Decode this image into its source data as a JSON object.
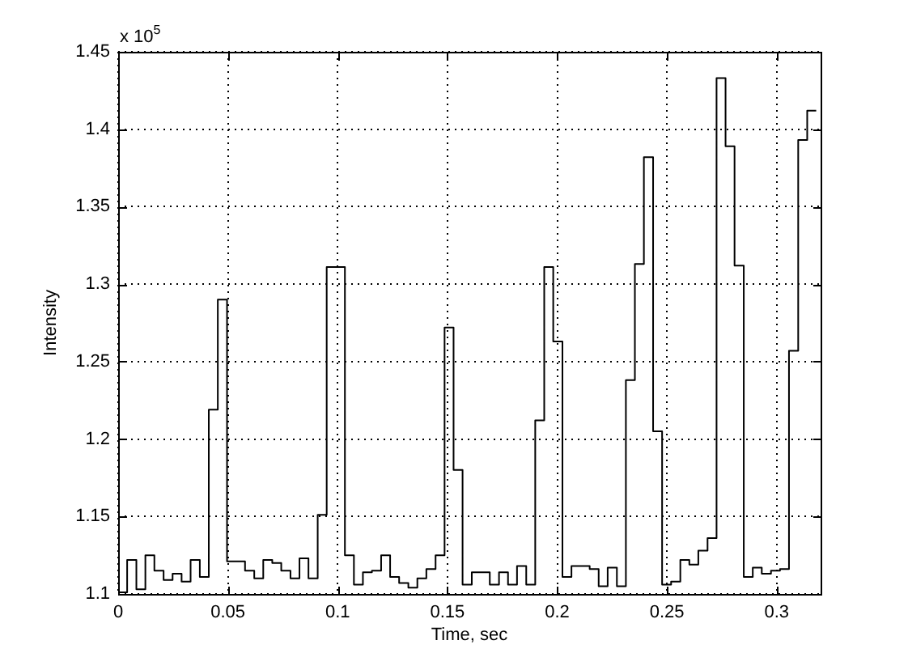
{
  "chart_data": {
    "type": "step",
    "xlabel": "Time, sec",
    "ylabel": "Intensity",
    "annotations": [
      "x 10$^{5}$"
    ],
    "x": [
      0,
      0.0041,
      0.0083,
      0.0124,
      0.0165,
      0.0207,
      0.0248,
      0.0289,
      0.033,
      0.0372,
      0.0413,
      0.0454,
      0.0496,
      0.0537,
      0.0578,
      0.062,
      0.0661,
      0.0702,
      0.0743,
      0.0785,
      0.0826,
      0.0867,
      0.0909,
      0.095,
      0.0991,
      0.1033,
      0.1074,
      0.1115,
      0.1156,
      0.1198,
      0.1239,
      0.128,
      0.1322,
      0.1363,
      0.1404,
      0.1446,
      0.1487,
      0.1528,
      0.1569,
      0.1611,
      0.1652,
      0.1693,
      0.1735,
      0.1776,
      0.1817,
      0.1859,
      0.19,
      0.1941,
      0.1982,
      0.2024,
      0.2065,
      0.2106,
      0.2148,
      0.2189,
      0.223,
      0.2272,
      0.2313,
      0.2354,
      0.2395,
      0.2437,
      0.2478,
      0.2519,
      0.2561,
      0.2602,
      0.2643,
      0.2685,
      0.2726,
      0.2767,
      0.2808,
      0.285,
      0.2891,
      0.2932,
      0.2974,
      0.3015,
      0.3056,
      0.3098,
      0.3139,
      0.318
    ],
    "series": [
      {
        "color": "#000000",
        "values": [
          1.113,
          1.101,
          1.122,
          1.103,
          1.125,
          1.115,
          1.109,
          1.113,
          1.108,
          1.122,
          1.111,
          1.219,
          1.29,
          1.121,
          1.121,
          1.115,
          1.11,
          1.122,
          1.12,
          1.115,
          1.11,
          1.123,
          1.11,
          1.151,
          1.311,
          1.311,
          1.125,
          1.106,
          1.114,
          1.115,
          1.125,
          1.111,
          1.107,
          1.104,
          1.11,
          1.116,
          1.125,
          1.272,
          1.18,
          1.106,
          1.114,
          1.114,
          1.106,
          1.114,
          1.106,
          1.118,
          1.106,
          1.212,
          1.311,
          1.263,
          1.111,
          1.118,
          1.118,
          1.116,
          1.105,
          1.117,
          1.105,
          1.238,
          1.313,
          1.382,
          1.205,
          1.106,
          1.108,
          1.122,
          1.119,
          1.128,
          1.136,
          1.433,
          1.389,
          1.312,
          1.111,
          1.117,
          1.113,
          1.115,
          1.116,
          1.257,
          1.393,
          1.412
        ]
      }
    ],
    "xlim": [
      0,
      0.32
    ],
    "xticks": [
      0,
      0.05,
      0.1,
      0.15,
      0.2,
      0.25,
      0.3
    ],
    "ylim": [
      1.1,
      1.45
    ],
    "yticks": [
      1.1,
      1.15,
      1.2,
      1.25,
      1.3,
      1.35,
      1.4,
      1.45
    ],
    "grid": true,
    "legend": false
  }
}
